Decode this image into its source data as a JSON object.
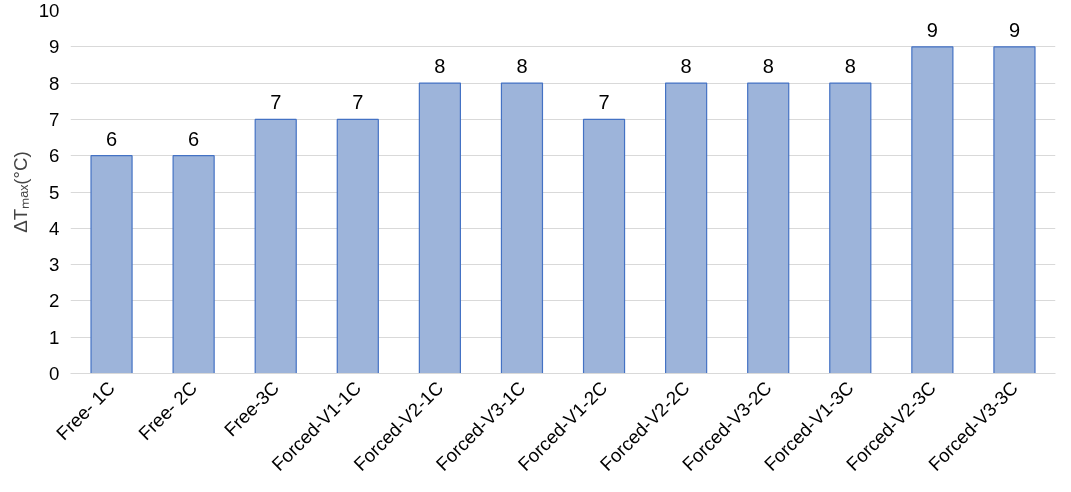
{
  "chart_data": {
    "type": "bar",
    "ylabel": "ΔTₘₐₓ(°C)",
    "categories": [
      "Free- 1C",
      "Free- 2C",
      "Free-3C",
      "Forced-V1-1C",
      "Forced-V2-1C",
      "Forced-V3-1C",
      "Forced-V1-2C",
      "Forced-V2-2C",
      "Forced-V3-2C",
      "Forced-V1-3C",
      "Forced-V2-3C",
      "Forced-V3-3C"
    ],
    "values": [
      6,
      6,
      7,
      7,
      8,
      8,
      7,
      8,
      8,
      8,
      9,
      9
    ],
    "color": "#9db4da",
    "ylim": [
      0,
      10
    ],
    "yticks": [
      0,
      1,
      2,
      3,
      4,
      5,
      6,
      7,
      8,
      9,
      10
    ],
    "grid": "y",
    "data_labels": true
  }
}
